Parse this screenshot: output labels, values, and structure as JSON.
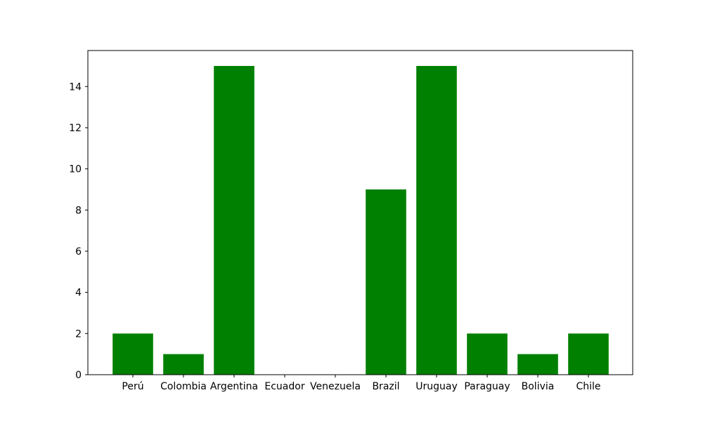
{
  "chart_data": {
    "type": "bar",
    "categories": [
      "Perú",
      "Colombia",
      "Argentina",
      "Ecuador",
      "Venezuela",
      "Brazil",
      "Uruguay",
      "Paraguay",
      "Bolivia",
      "Chile"
    ],
    "values": [
      2,
      1,
      15,
      0,
      0,
      9,
      15,
      2,
      1,
      2
    ],
    "y_ticks": [
      0,
      2,
      4,
      6,
      8,
      10,
      12,
      14
    ],
    "ylim": [
      0,
      15.75
    ],
    "grid": false,
    "colors": {
      "bar": "#008000",
      "axis": "#000000",
      "background": "#ffffff"
    }
  }
}
